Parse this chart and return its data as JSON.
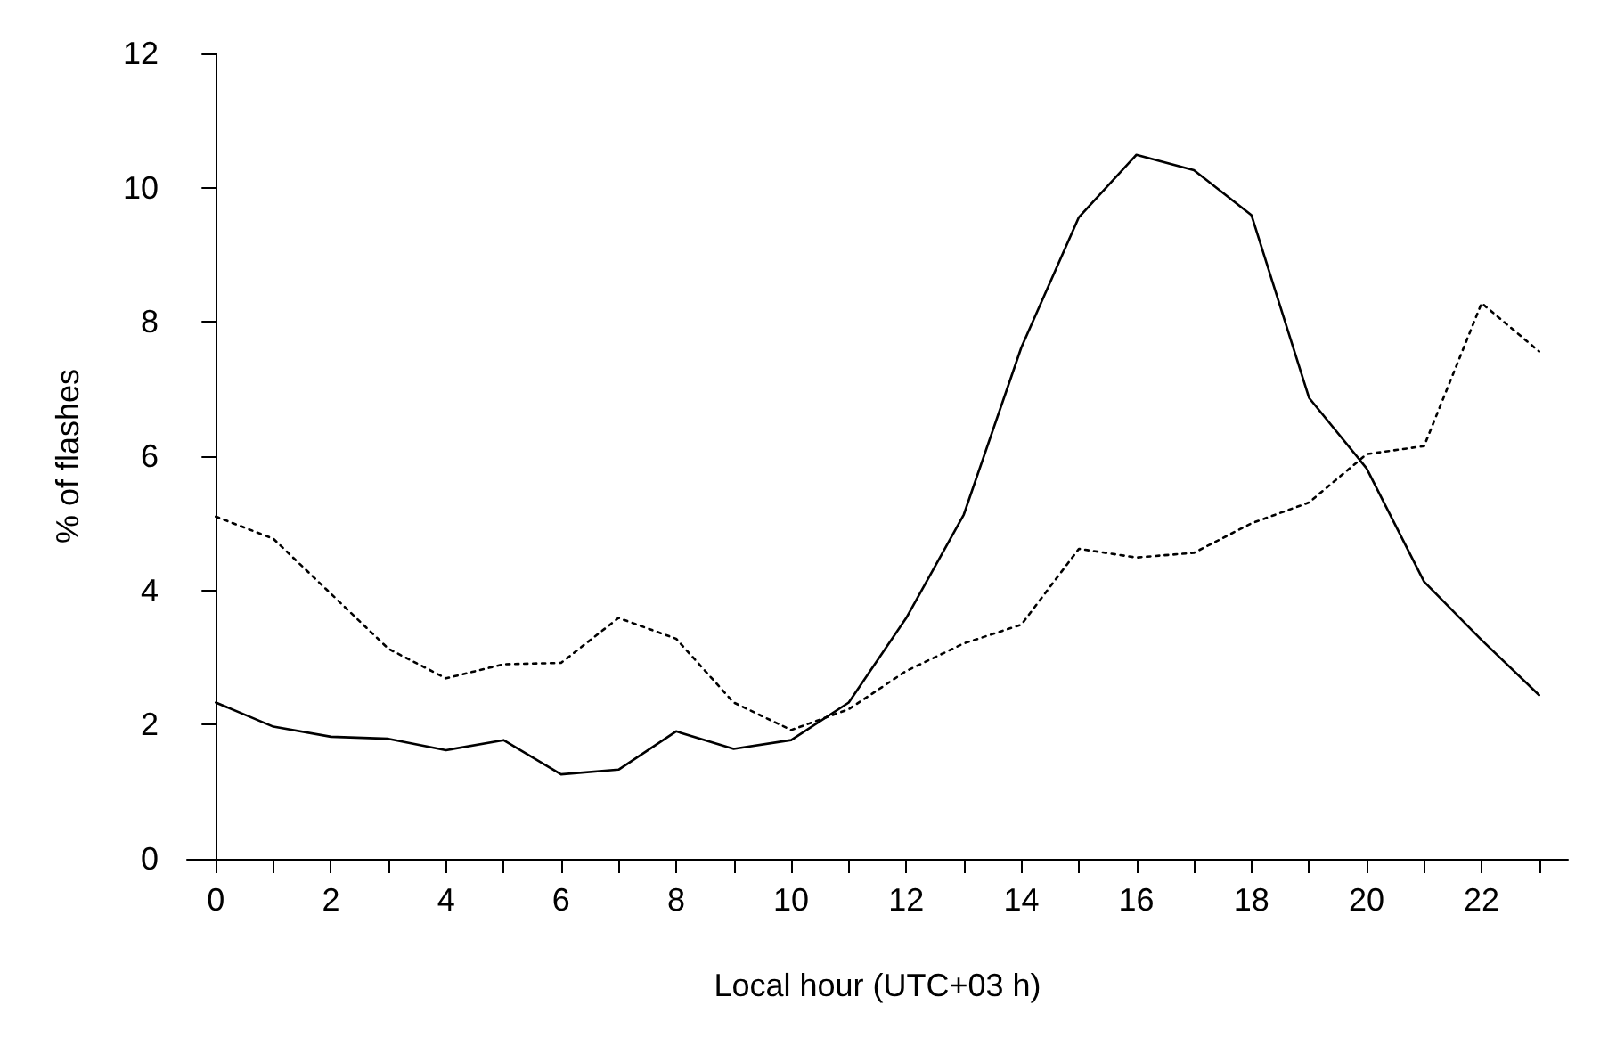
{
  "chart_data": {
    "type": "line",
    "xlabel": "Local hour (UTC+03 h)",
    "ylabel": "% of flashes",
    "x": [
      0,
      1,
      2,
      3,
      4,
      5,
      6,
      7,
      8,
      9,
      10,
      11,
      12,
      13,
      14,
      15,
      16,
      17,
      18,
      19,
      20,
      21,
      22,
      23
    ],
    "series": [
      {
        "color": "#000000",
        "line_style": "solid",
        "values": [
          2.33,
          1.97,
          1.82,
          1.79,
          1.62,
          1.77,
          1.26,
          1.33,
          1.9,
          1.64,
          1.77,
          2.33,
          3.59,
          5.13,
          7.62,
          9.56,
          10.49,
          10.26,
          9.59,
          6.87,
          5.82,
          4.13,
          3.26,
          2.44
        ]
      },
      {
        "color": "#000000",
        "line_style": "dotted",
        "values": [
          5.1,
          4.77,
          3.95,
          3.13,
          2.69,
          2.9,
          2.92,
          3.59,
          3.28,
          2.33,
          1.92,
          2.23,
          2.8,
          3.21,
          3.49,
          4.62,
          4.49,
          4.56,
          5.0,
          5.31,
          6.03,
          6.15,
          8.28,
          7.56
        ]
      }
    ],
    "xlim": [
      -0.5,
      23.5
    ],
    "xticks": [
      0,
      {
        "value": 1,
        "label": null
      },
      2,
      {
        "value": 3,
        "label": null
      },
      4,
      {
        "value": 5,
        "label": null
      },
      6,
      {
        "value": 7,
        "label": null
      },
      8,
      {
        "value": 9,
        "label": null
      },
      10,
      {
        "value": 11,
        "label": null
      },
      12,
      {
        "value": 13,
        "label": null
      },
      14,
      {
        "value": 15,
        "label": null
      },
      16,
      {
        "value": 17,
        "label": null
      },
      18,
      {
        "value": 19,
        "label": null
      },
      20,
      {
        "value": 21,
        "label": null
      },
      22,
      {
        "value": 23,
        "label": null
      }
    ],
    "ylim": [
      0,
      12
    ],
    "yticks": [
      0,
      2,
      4,
      6,
      8,
      10,
      12
    ],
    "marker": "none"
  }
}
